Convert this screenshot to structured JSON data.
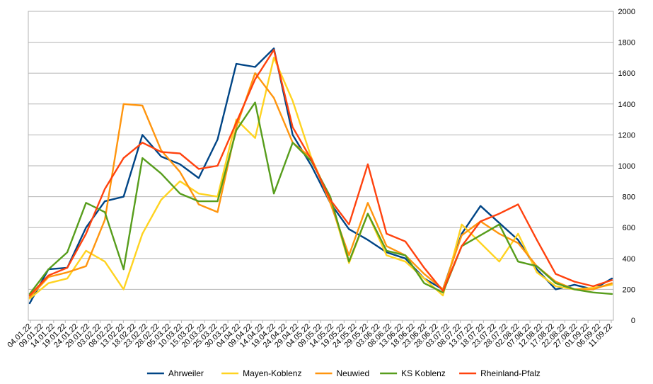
{
  "chart_data": {
    "type": "line",
    "title": "",
    "xlabel": "",
    "ylabel": "",
    "ylim": [
      0,
      2000
    ],
    "y_axis_side": "right",
    "grid": "horizontal",
    "legend_position": "bottom",
    "x_tick_labels": [
      "04.01.22",
      "09.01.22",
      "14.01.22",
      "19.01.22",
      "24.01.22",
      "29.01.22",
      "03.02.22",
      "08.02.22",
      "13.02.22",
      "18.02.22",
      "23.02.22",
      "28.02.22",
      "05.03.22",
      "10.03.22",
      "15.03.22",
      "20.03.22",
      "25.03.22",
      "30.03.22",
      "04.04.22",
      "09.04.22",
      "14.04.22",
      "19.04.22",
      "24.04.22",
      "29.04.22",
      "04.05.22",
      "09.05.22",
      "14.05.22",
      "19.05.22",
      "24.05.22",
      "29.05.22",
      "03.06.22",
      "08.06.22",
      "13.06.22",
      "18.06.22",
      "23.06.22",
      "28.06.22",
      "03.07.22",
      "08.07.22",
      "13.07.22",
      "18.07.22",
      "23.07.22",
      "28.07.22",
      "02.08.22",
      "07.08.22",
      "12.08.22",
      "17.08.22",
      "22.08.22",
      "27.08.22",
      "01.09.22",
      "06.09.22",
      "11.09.22"
    ],
    "y_tick_labels": [
      "0",
      "200",
      "400",
      "600",
      "800",
      "1000",
      "1200",
      "1400",
      "1600",
      "1800",
      "2000"
    ],
    "series": [
      {
        "name": "Ahrweiler",
        "color": "#004586",
        "values": [
          110,
          330,
          340,
          600,
          770,
          800,
          1200,
          1060,
          1010,
          920,
          1170,
          1660,
          1640,
          1760,
          1200,
          1000,
          760,
          590,
          520,
          440,
          400,
          270,
          200,
          560,
          740,
          630,
          520,
          330,
          200,
          230,
          200,
          270
        ]
      },
      {
        "name": "Mayen-Koblenz",
        "color": "#ffd320",
        "values": [
          140,
          240,
          270,
          450,
          380,
          200,
          560,
          780,
          900,
          820,
          800,
          1300,
          1180,
          1700,
          1420,
          1050,
          780,
          370,
          690,
          420,
          380,
          270,
          160,
          620,
          500,
          380,
          560,
          310,
          220,
          200,
          210,
          230
        ]
      },
      {
        "name": "Neuwied",
        "color": "#ff950e",
        "values": [
          150,
          280,
          310,
          350,
          650,
          1400,
          1390,
          1100,
          960,
          750,
          700,
          1250,
          1600,
          1440,
          1150,
          1050,
          760,
          420,
          760,
          480,
          420,
          300,
          200,
          550,
          640,
          560,
          500,
          350,
          250,
          200,
          200,
          240
        ]
      },
      {
        "name": "KS Koblenz",
        "color": "#579d1c",
        "values": [
          170,
          330,
          440,
          760,
          700,
          330,
          1050,
          950,
          820,
          770,
          770,
          1230,
          1410,
          820,
          1150,
          1030,
          800,
          380,
          690,
          450,
          420,
          240,
          180,
          480,
          550,
          620,
          380,
          350,
          240,
          200,
          180,
          170
        ]
      },
      {
        "name": "Rheinland-Pfalz",
        "color": "#ff420e",
        "values": [
          160,
          290,
          340,
          560,
          850,
          1050,
          1150,
          1090,
          1080,
          980,
          1000,
          1280,
          1560,
          1750,
          1250,
          1040,
          780,
          620,
          1010,
          560,
          510,
          340,
          190,
          480,
          640,
          690,
          750,
          520,
          300,
          250,
          220,
          260
        ]
      }
    ]
  }
}
